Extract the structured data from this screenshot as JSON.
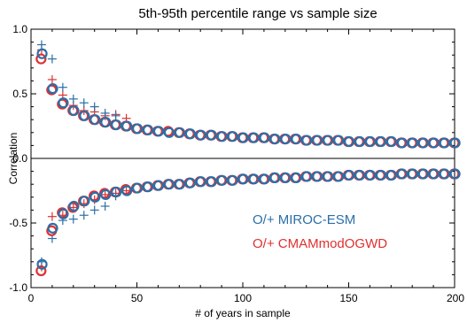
{
  "chart_data": {
    "type": "scatter",
    "title": "5th-95th percentile range vs sample size",
    "xlabel": "# of years in sample",
    "ylabel": "Correlation",
    "xlim": [
      0,
      200
    ],
    "ylim": [
      -1.0,
      1.0
    ],
    "xticks": [
      0,
      50,
      100,
      150,
      200
    ],
    "xtick_labels": [
      "0",
      "50",
      "100",
      "150",
      "200"
    ],
    "yticks": [
      -1.0,
      -0.5,
      0.0,
      0.5,
      1.0
    ],
    "ytick_labels": [
      "-1.0",
      "-0.5",
      "0.0",
      "0.5",
      "1.0"
    ],
    "zero_line": true,
    "grid": false,
    "legend_position": "lower-right",
    "legend_prefix": "O/+",
    "series": [
      {
        "name": "MIROC-ESM",
        "color": "#2a6fa8",
        "circles": {
          "x": [
            5,
            10,
            15,
            20,
            25,
            30,
            35,
            40,
            45,
            50,
            55,
            60,
            65,
            70,
            75,
            80,
            85,
            90,
            95,
            100,
            105,
            110,
            115,
            120,
            125,
            130,
            135,
            140,
            145,
            150,
            155,
            160,
            165,
            170,
            175,
            180,
            185,
            190,
            195,
            200
          ],
          "upper": [
            0.81,
            0.54,
            0.43,
            0.37,
            0.33,
            0.3,
            0.28,
            0.26,
            0.25,
            0.23,
            0.22,
            0.21,
            0.2,
            0.2,
            0.19,
            0.18,
            0.18,
            0.17,
            0.17,
            0.16,
            0.16,
            0.16,
            0.15,
            0.15,
            0.15,
            0.14,
            0.14,
            0.14,
            0.14,
            0.13,
            0.13,
            0.13,
            0.13,
            0.13,
            0.12,
            0.12,
            0.12,
            0.12,
            0.12,
            0.12
          ],
          "lower": [
            -0.82,
            -0.54,
            -0.43,
            -0.37,
            -0.33,
            -0.3,
            -0.28,
            -0.26,
            -0.25,
            -0.23,
            -0.22,
            -0.21,
            -0.2,
            -0.2,
            -0.19,
            -0.18,
            -0.18,
            -0.17,
            -0.17,
            -0.16,
            -0.16,
            -0.16,
            -0.15,
            -0.15,
            -0.15,
            -0.14,
            -0.14,
            -0.14,
            -0.14,
            -0.13,
            -0.13,
            -0.13,
            -0.13,
            -0.13,
            -0.12,
            -0.12,
            -0.12,
            -0.12,
            -0.12,
            -0.12
          ]
        },
        "crosses": {
          "x": [
            5,
            10,
            15,
            20,
            25,
            30,
            35,
            40
          ],
          "upper": [
            0.88,
            0.77,
            0.55,
            0.46,
            0.43,
            0.4,
            0.35,
            0.33
          ],
          "lower": [
            -0.8,
            -0.62,
            -0.48,
            -0.47,
            -0.44,
            -0.4,
            -0.37,
            -0.29
          ]
        }
      },
      {
        "name": "CMAMmodOGWD",
        "color": "#e03030",
        "circles": {
          "x": [
            5,
            10,
            15,
            20,
            25,
            30,
            35,
            40,
            45,
            50,
            55,
            60,
            65,
            70,
            75,
            80,
            85,
            90,
            95,
            100,
            105,
            110,
            115,
            120,
            125,
            130,
            135,
            140,
            145,
            150,
            155,
            160,
            165,
            170,
            175,
            180,
            185,
            190,
            195,
            200
          ],
          "upper": [
            0.77,
            0.53,
            0.42,
            0.37,
            0.33,
            0.3,
            0.28,
            0.26,
            0.25,
            0.23,
            0.22,
            0.21,
            0.21,
            0.2,
            0.19,
            0.18,
            0.18,
            0.17,
            0.17,
            0.16,
            0.16,
            0.16,
            0.15,
            0.15,
            0.15,
            0.14,
            0.14,
            0.14,
            0.14,
            0.13,
            0.13,
            0.13,
            0.13,
            0.13,
            0.12,
            0.12,
            0.12,
            0.12,
            0.12,
            0.12
          ],
          "lower": [
            -0.87,
            -0.56,
            -0.42,
            -0.38,
            -0.33,
            -0.29,
            -0.27,
            -0.26,
            -0.24,
            -0.23,
            -0.22,
            -0.21,
            -0.2,
            -0.2,
            -0.19,
            -0.18,
            -0.18,
            -0.17,
            -0.17,
            -0.16,
            -0.16,
            -0.16,
            -0.15,
            -0.15,
            -0.15,
            -0.14,
            -0.14,
            -0.14,
            -0.14,
            -0.13,
            -0.13,
            -0.13,
            -0.13,
            -0.13,
            -0.12,
            -0.12,
            -0.12,
            -0.12,
            -0.12,
            -0.12
          ]
        },
        "crosses": {
          "x": [
            5,
            10,
            15,
            20,
            25,
            30,
            35,
            40,
            45
          ],
          "upper": [
            0.84,
            0.61,
            0.49,
            0.41,
            0.37,
            0.36,
            0.33,
            0.34,
            0.31
          ],
          "lower": [
            -0.84,
            -0.45,
            -0.44,
            -0.38,
            -0.35,
            -0.32,
            -0.28,
            -0.27,
            -0.25
          ]
        }
      }
    ]
  }
}
